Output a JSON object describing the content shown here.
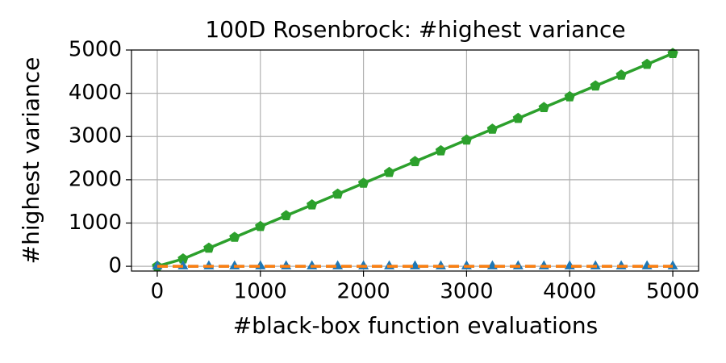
{
  "chart_data": {
    "type": "line",
    "title": "100D Rosenbrock: #highest variance",
    "x_label": "#black-box function evaluations",
    "y_label": "#highest variance",
    "x": [
      0,
      250,
      500,
      750,
      1000,
      1250,
      1500,
      1750,
      2000,
      2250,
      2500,
      2750,
      3000,
      3250,
      3500,
      3750,
      4000,
      4250,
      4500,
      4750,
      5000
    ],
    "series": [
      {
        "color": "#2ca02c",
        "linestyle": "solid",
        "marker": "pentagon",
        "values": [
          0,
          170,
          420,
          670,
          920,
          1170,
          1420,
          1670,
          1920,
          2170,
          2420,
          2670,
          2920,
          3170,
          3420,
          3670,
          3920,
          4170,
          4420,
          4670,
          4920
        ]
      },
      {
        "color": "#1f77b4",
        "linestyle": "dashed",
        "marker": "triangle",
        "values": [
          0,
          0,
          0,
          0,
          0,
          0,
          0,
          0,
          0,
          0,
          0,
          0,
          0,
          0,
          0,
          0,
          0,
          0,
          0,
          0,
          0
        ]
      },
      {
        "color": "#ff7f0e",
        "linestyle": "dashed",
        "values": [
          0,
          0,
          0,
          0,
          0,
          0,
          0,
          0,
          0,
          0,
          0,
          0,
          0,
          0,
          0,
          0,
          0,
          0,
          0,
          0,
          0
        ]
      }
    ],
    "xlim": [
      -250,
      5250
    ],
    "xticks": [
      0,
      1000,
      2000,
      3000,
      4000,
      5000
    ],
    "ylim": [
      -110,
      5000
    ],
    "yticks": [
      0,
      1000,
      2000,
      3000,
      4000,
      5000
    ],
    "grid": true
  }
}
